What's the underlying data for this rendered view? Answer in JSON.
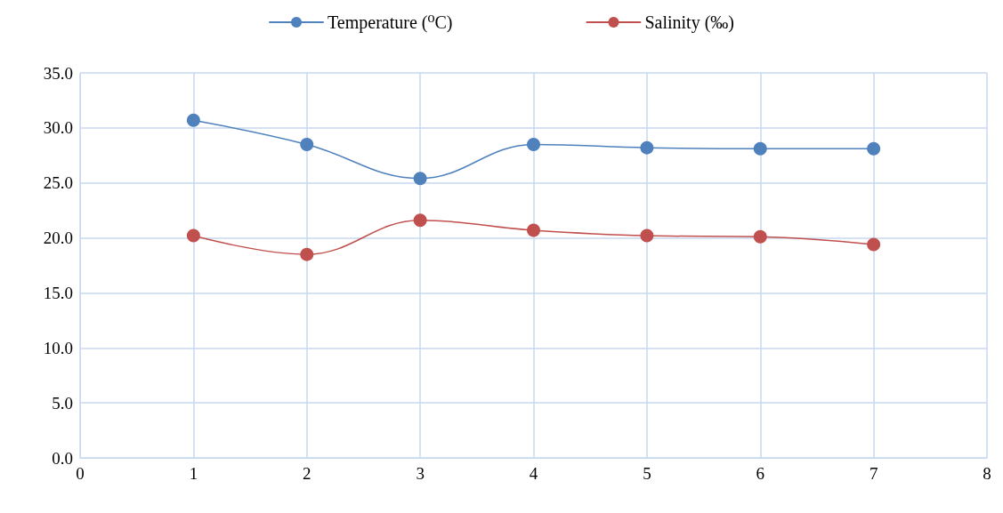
{
  "chart_data": {
    "type": "line",
    "x": [
      1,
      2,
      3,
      4,
      5,
      6,
      7
    ],
    "series": [
      {
        "name": "Temperature (⁰C)",
        "color": "#4f81bd",
        "values": [
          30.7,
          28.5,
          25.4,
          28.5,
          28.2,
          28.1,
          28.1
        ]
      },
      {
        "name": "Salinity (‰)",
        "color": "#c0504d",
        "values": [
          20.2,
          18.5,
          21.6,
          20.7,
          20.2,
          20.1,
          19.4
        ]
      }
    ],
    "xlim": [
      0,
      8
    ],
    "xticks": [
      0,
      1,
      2,
      3,
      4,
      5,
      6,
      7,
      8
    ],
    "ylim": [
      0,
      35
    ],
    "yticks": [
      {
        "value": 0,
        "label": "0.0"
      },
      {
        "value": 5,
        "label": "5.0"
      },
      {
        "value": 10,
        "label": "10.0"
      },
      {
        "value": 15,
        "label": "15.0"
      },
      {
        "value": 20,
        "label": "20.0"
      },
      {
        "value": 25,
        "label": "25.0"
      },
      {
        "value": 30,
        "label": "30.0"
      },
      {
        "value": 35,
        "label": "35.0"
      }
    ],
    "grid": true,
    "legend": "top",
    "marker": "circle",
    "line_style": "solid"
  }
}
